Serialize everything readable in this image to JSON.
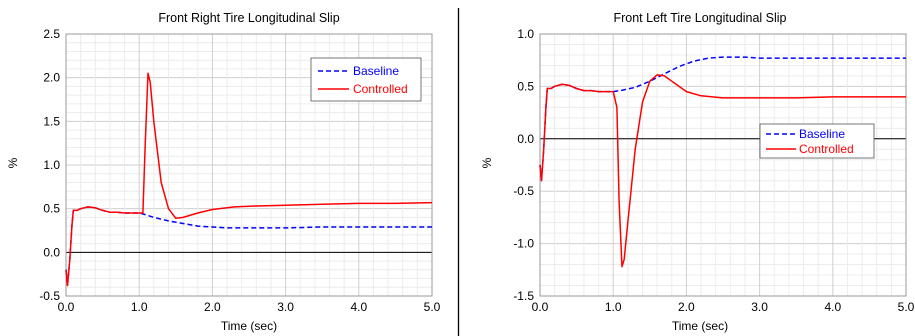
{
  "chart_data": [
    {
      "type": "line",
      "title": "Front Right Tire Longitudinal Slip",
      "xlabel": "Time (sec)",
      "ylabel": "%",
      "xlim": [
        0,
        5
      ],
      "ylim": [
        -0.5,
        2.5
      ],
      "xticks": [
        "0.0",
        "1.0",
        "2.0",
        "3.0",
        "4.0",
        "5.0"
      ],
      "yticks": [
        "-0.5",
        "0.0",
        "0.5",
        "1.0",
        "1.5",
        "2.0",
        "2.5"
      ],
      "grid": true,
      "legend_position": "top-right",
      "series": [
        {
          "name": "Baseline",
          "color": "#0000ff",
          "style": "dashed",
          "x": [
            0,
            0.02,
            0.05,
            0.08,
            0.1,
            0.15,
            0.2,
            0.3,
            0.4,
            0.5,
            0.6,
            0.7,
            0.8,
            0.9,
            1.0,
            1.05,
            1.2,
            1.4,
            1.6,
            1.8,
            2.0,
            2.2,
            2.5,
            3.0,
            3.5,
            4.0,
            4.5,
            5.0
          ],
          "y": [
            -0.2,
            -0.38,
            -0.1,
            0.3,
            0.48,
            0.48,
            0.5,
            0.52,
            0.51,
            0.48,
            0.46,
            0.46,
            0.45,
            0.45,
            0.45,
            0.44,
            0.4,
            0.36,
            0.33,
            0.3,
            0.29,
            0.28,
            0.28,
            0.28,
            0.29,
            0.29,
            0.29,
            0.29
          ]
        },
        {
          "name": "Controlled",
          "color": "#ff0000",
          "style": "solid",
          "x": [
            0,
            0.02,
            0.05,
            0.08,
            0.1,
            0.15,
            0.2,
            0.3,
            0.4,
            0.5,
            0.6,
            0.7,
            0.8,
            0.9,
            1.0,
            1.05,
            1.08,
            1.12,
            1.15,
            1.2,
            1.3,
            1.4,
            1.5,
            1.6,
            1.8,
            2.0,
            2.3,
            2.6,
            3.0,
            3.5,
            4.0,
            4.5,
            5.0
          ],
          "y": [
            -0.2,
            -0.38,
            -0.1,
            0.3,
            0.48,
            0.48,
            0.5,
            0.52,
            0.51,
            0.48,
            0.46,
            0.46,
            0.45,
            0.45,
            0.45,
            0.45,
            1.2,
            2.05,
            1.95,
            1.5,
            0.8,
            0.5,
            0.39,
            0.4,
            0.45,
            0.49,
            0.52,
            0.53,
            0.54,
            0.55,
            0.56,
            0.56,
            0.57
          ]
        }
      ]
    },
    {
      "type": "line",
      "title": "Front Left Tire Longitudinal Slip",
      "xlabel": "Time (sec)",
      "ylabel": "%",
      "xlim": [
        0,
        5
      ],
      "ylim": [
        -1.5,
        1.0
      ],
      "xticks": [
        "0.0",
        "1.0",
        "2.0",
        "3.0",
        "4.0",
        "5.0"
      ],
      "yticks": [
        "-1.5",
        "-1.0",
        "-0.5",
        "0.0",
        "0.5",
        "1.0"
      ],
      "grid": true,
      "legend_position": "center-right",
      "series": [
        {
          "name": "Baseline",
          "color": "#0000ff",
          "style": "dashed",
          "x": [
            0,
            0.02,
            0.05,
            0.08,
            0.1,
            0.15,
            0.2,
            0.3,
            0.4,
            0.5,
            0.6,
            0.7,
            0.8,
            0.9,
            1.0,
            1.1,
            1.3,
            1.5,
            1.7,
            1.9,
            2.1,
            2.3,
            2.5,
            2.8,
            3.0,
            3.5,
            4.0,
            4.5,
            5.0
          ],
          "y": [
            -0.25,
            -0.4,
            -0.1,
            0.3,
            0.48,
            0.48,
            0.5,
            0.52,
            0.51,
            0.48,
            0.46,
            0.46,
            0.45,
            0.45,
            0.45,
            0.46,
            0.49,
            0.55,
            0.62,
            0.69,
            0.74,
            0.77,
            0.78,
            0.78,
            0.77,
            0.77,
            0.77,
            0.77,
            0.77
          ]
        },
        {
          "name": "Controlled",
          "color": "#ff0000",
          "style": "solid",
          "x": [
            0,
            0.02,
            0.05,
            0.08,
            0.1,
            0.15,
            0.2,
            0.3,
            0.4,
            0.5,
            0.6,
            0.7,
            0.8,
            0.9,
            1.0,
            1.05,
            1.08,
            1.12,
            1.15,
            1.2,
            1.3,
            1.4,
            1.5,
            1.6,
            1.7,
            1.8,
            1.9,
            2.0,
            2.2,
            2.5,
            3.0,
            3.5,
            4.0,
            4.5,
            5.0
          ],
          "y": [
            -0.25,
            -0.4,
            -0.1,
            0.3,
            0.48,
            0.48,
            0.5,
            0.52,
            0.51,
            0.48,
            0.46,
            0.46,
            0.45,
            0.45,
            0.45,
            0.3,
            -0.6,
            -1.22,
            -1.15,
            -0.8,
            -0.1,
            0.35,
            0.55,
            0.61,
            0.6,
            0.55,
            0.5,
            0.45,
            0.41,
            0.39,
            0.39,
            0.39,
            0.4,
            0.4,
            0.4
          ]
        }
      ]
    }
  ]
}
